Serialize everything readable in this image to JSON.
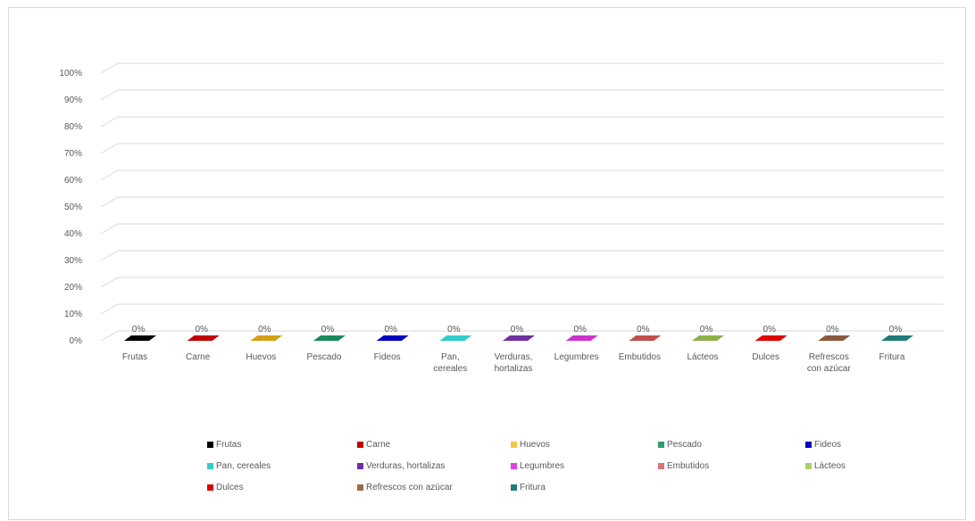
{
  "chart_data": {
    "type": "bar",
    "style": "3d-clustered-column",
    "categories": [
      "Frutas",
      "Carne",
      "Huevos",
      "Pescado",
      "Fideos",
      "Pan, cereales",
      "Verduras, hortalizas",
      "Legumbres",
      "Embutidos",
      "Lácteos",
      "Dulces",
      "Refrescos con azúcar",
      "Fritura"
    ],
    "category_labels": [
      [
        "Frutas"
      ],
      [
        "Carne"
      ],
      [
        "Huevos"
      ],
      [
        "Pescado"
      ],
      [
        "Fideos"
      ],
      [
        "Pan,",
        "cereales"
      ],
      [
        "Verduras,",
        "hortalizas"
      ],
      [
        "Legumbres"
      ],
      [
        "Embutidos"
      ],
      [
        "Lácteos"
      ],
      [
        "Dulces"
      ],
      [
        "Refrescos",
        "con azúcar"
      ],
      [
        "Fritura"
      ]
    ],
    "values": [
      0,
      0,
      0,
      0,
      0,
      0,
      0,
      0,
      0,
      0,
      0,
      0,
      0
    ],
    "data_labels": [
      "0%",
      "0%",
      "0%",
      "0%",
      "0%",
      "0%",
      "0%",
      "0%",
      "0%",
      "0%",
      "0%",
      "0%",
      "0%"
    ],
    "colors": [
      "#000000",
      "#c00000",
      "#d4a017",
      "#1a8a5a",
      "#0000c0",
      "#33cccc",
      "#7030a0",
      "#cc33cc",
      "#c0504d",
      "#8db04a",
      "#e00000",
      "#8b5a3c",
      "#217a7a"
    ],
    "ylim": [
      0,
      1
    ],
    "y_ticks": [
      "0%",
      "10%",
      "20%",
      "30%",
      "40%",
      "50%",
      "60%",
      "70%",
      "80%",
      "90%",
      "100%"
    ],
    "grid": true,
    "legend_position": "bottom",
    "title": "",
    "xlabel": "",
    "ylabel": ""
  },
  "legend": [
    {
      "label": "Frutas",
      "color": "#000000"
    },
    {
      "label": "Carne",
      "color": "#c00000"
    },
    {
      "label": "Huevos",
      "color": "#f2c744"
    },
    {
      "label": "Pescado",
      "color": "#2e9e6e"
    },
    {
      "label": "Fideos",
      "color": "#0000c0"
    },
    {
      "label": "Pan, cereales",
      "color": "#33cccc"
    },
    {
      "label": "Verduras, hortalizas",
      "color": "#7030a0"
    },
    {
      "label": "Legumbres",
      "color": "#e040e0"
    },
    {
      "label": "Embutidos",
      "color": "#d9707a"
    },
    {
      "label": "Lácteos",
      "color": "#a9d16a"
    },
    {
      "label": "Dulces",
      "color": "#e00000"
    },
    {
      "label": "Refrescos con azúcar",
      "color": "#9e6a48"
    },
    {
      "label": "Fritura",
      "color": "#217a7a"
    }
  ]
}
